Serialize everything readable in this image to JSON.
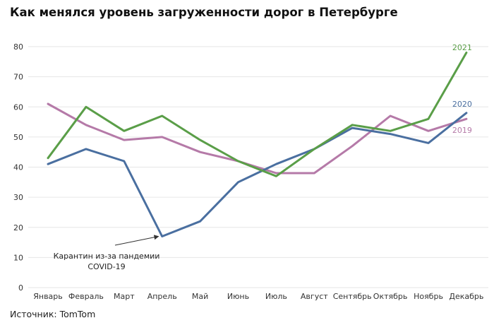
{
  "page": {
    "title": "Как менялся уровень загруженности дорог в Петербурге",
    "source": "Источник: TomTom"
  },
  "chart_data": {
    "type": "line",
    "title": "Как менялся уровень загруженности дорог в Петербурге",
    "xlabel": "",
    "ylabel": "",
    "ylim": [
      0,
      80
    ],
    "yticks": [
      0,
      10,
      20,
      30,
      40,
      50,
      60,
      70,
      80
    ],
    "grid": true,
    "categories": [
      "Январь",
      "Февраль",
      "Март",
      "Апрель",
      "Май",
      "Июнь",
      "Июль",
      "Август",
      "Сентябрь",
      "Октябрь",
      "Ноябрь",
      "Декабрь"
    ],
    "series": [
      {
        "name": "2019",
        "color": "#b57aa8",
        "values": [
          61,
          54,
          49,
          50,
          45,
          42,
          38,
          38,
          47,
          57,
          52,
          56
        ]
      },
      {
        "name": "2020",
        "color": "#4a6fa0",
        "values": [
          41,
          46,
          42,
          17,
          22,
          35,
          41,
          46,
          53,
          51,
          48,
          58
        ]
      },
      {
        "name": "2021",
        "color": "#5a9e48",
        "values": [
          43,
          60,
          52,
          57,
          49,
          42,
          37,
          46,
          54,
          52,
          56,
          78
        ]
      }
    ],
    "annotation": {
      "lines": [
        "Карантин из-за пандемии",
        "COVID-19"
      ],
      "target_category": "Апрель",
      "target_value": 17
    }
  }
}
